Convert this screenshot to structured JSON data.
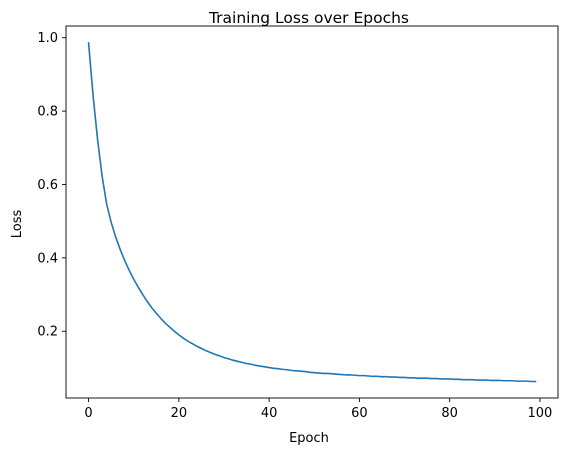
{
  "chart_data": {
    "type": "line",
    "title": "Training Loss over Epochs",
    "xlabel": "Epoch",
    "ylabel": "Loss",
    "xlim": [
      -5,
      104
    ],
    "ylim": [
      0.018,
      1.032
    ],
    "grid": false,
    "x_ticks": [
      0,
      20,
      40,
      60,
      80,
      100
    ],
    "x_tick_labels": [
      "0",
      "20",
      "40",
      "60",
      "80",
      "100"
    ],
    "y_ticks": [
      0.2,
      0.4,
      0.6,
      0.8,
      1.0
    ],
    "y_tick_labels": [
      "0.2",
      "0.4",
      "0.6",
      "0.8",
      "1.0"
    ],
    "series": [
      {
        "color": "#1f77b4",
        "x": [
          0,
          1,
          2,
          3,
          4,
          5,
          6,
          7,
          8,
          9,
          10,
          11,
          12,
          13,
          14,
          15,
          16,
          17,
          18,
          19,
          20,
          21,
          22,
          23,
          24,
          25,
          26,
          27,
          28,
          29,
          30,
          31,
          32,
          33,
          34,
          35,
          36,
          37,
          38,
          39,
          40,
          41,
          42,
          43,
          44,
          45,
          46,
          47,
          48,
          49,
          50,
          51,
          52,
          53,
          54,
          55,
          56,
          57,
          58,
          59,
          60,
          61,
          62,
          63,
          64,
          65,
          66,
          67,
          68,
          69,
          70,
          71,
          72,
          73,
          74,
          75,
          76,
          77,
          78,
          79,
          80,
          81,
          82,
          83,
          84,
          85,
          86,
          87,
          88,
          89,
          90,
          91,
          92,
          93,
          94,
          95,
          96,
          97,
          98,
          99
        ],
        "y": [
          0.986,
          0.842,
          0.722,
          0.623,
          0.547,
          0.497,
          0.457,
          0.423,
          0.393,
          0.366,
          0.342,
          0.32,
          0.3,
          0.281,
          0.264,
          0.249,
          0.235,
          0.222,
          0.211,
          0.2,
          0.19,
          0.181,
          0.173,
          0.166,
          0.159,
          0.153,
          0.147,
          0.142,
          0.137,
          0.133,
          0.128,
          0.125,
          0.121,
          0.118,
          0.115,
          0.112,
          0.11,
          0.107,
          0.105,
          0.103,
          0.101,
          0.099,
          0.098,
          0.096,
          0.095,
          0.093,
          0.092,
          0.091,
          0.09,
          0.088,
          0.087,
          0.086,
          0.085,
          0.085,
          0.084,
          0.083,
          0.082,
          0.081,
          0.081,
          0.08,
          0.079,
          0.079,
          0.078,
          0.077,
          0.077,
          0.076,
          0.076,
          0.075,
          0.075,
          0.074,
          0.074,
          0.073,
          0.073,
          0.072,
          0.072,
          0.072,
          0.071,
          0.071,
          0.07,
          0.07,
          0.07,
          0.069,
          0.069,
          0.068,
          0.068,
          0.068,
          0.067,
          0.067,
          0.067,
          0.066,
          0.066,
          0.066,
          0.065,
          0.065,
          0.065,
          0.064,
          0.064,
          0.064,
          0.063,
          0.063
        ]
      }
    ]
  }
}
